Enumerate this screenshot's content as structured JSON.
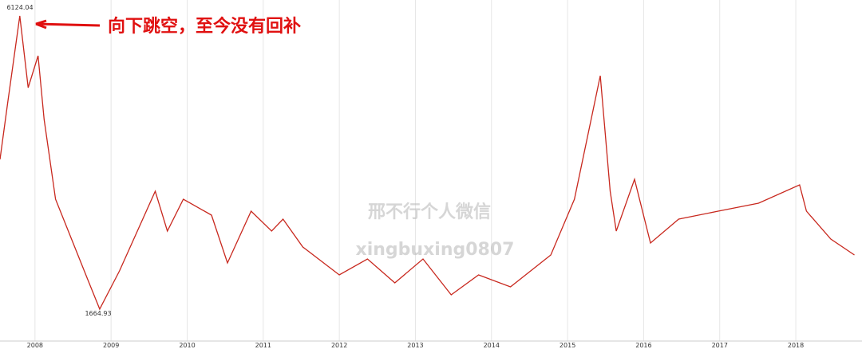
{
  "chart_data": {
    "type": "line",
    "x": [
      2007.54,
      2007.64,
      2007.8,
      2007.91,
      2008.04,
      2008.12,
      2008.27,
      2008.48,
      2008.69,
      2008.85,
      2009.11,
      2009.58,
      2009.74,
      2009.95,
      2010.32,
      2010.53,
      2010.84,
      2011.11,
      2011.26,
      2011.52,
      2012.0,
      2012.37,
      2012.73,
      2013.1,
      2013.47,
      2013.83,
      2014.25,
      2014.78,
      2015.09,
      2015.43,
      2015.56,
      2015.64,
      2015.88,
      2016.09,
      2016.46,
      2016.98,
      2017.51,
      2018.05,
      2018.14,
      2018.46,
      2018.77
    ],
    "series": [
      {
        "color": "#c8281e",
        "values": [
          3942,
          4791,
          6124.04,
          5033,
          5518,
          4548,
          3336,
          2730,
          2124,
          1664.93,
          2246,
          3458,
          2852,
          3336,
          3094,
          2367,
          3155,
          2852,
          3033,
          2609,
          2185,
          2427,
          2064,
          2427,
          1882,
          2185,
          2003,
          2488,
          3336,
          5215,
          3458,
          2852,
          3639,
          2670,
          3033,
          3155,
          3276,
          3555,
          3155,
          2730,
          2488
        ]
      }
    ],
    "xlim": [
      2007.54,
      2018.87
    ],
    "xticks": [
      2008,
      2009,
      2010,
      2011,
      2012,
      2013,
      2014,
      2015,
      2016,
      2017,
      2018
    ],
    "ylim": [
      1155,
      6366
    ],
    "grid": true,
    "annotations": [
      "6124.04",
      "1664.93",
      "向下跳空，至今没有回补",
      "邢不行个人微信",
      "xingbuxing0807"
    ]
  }
}
